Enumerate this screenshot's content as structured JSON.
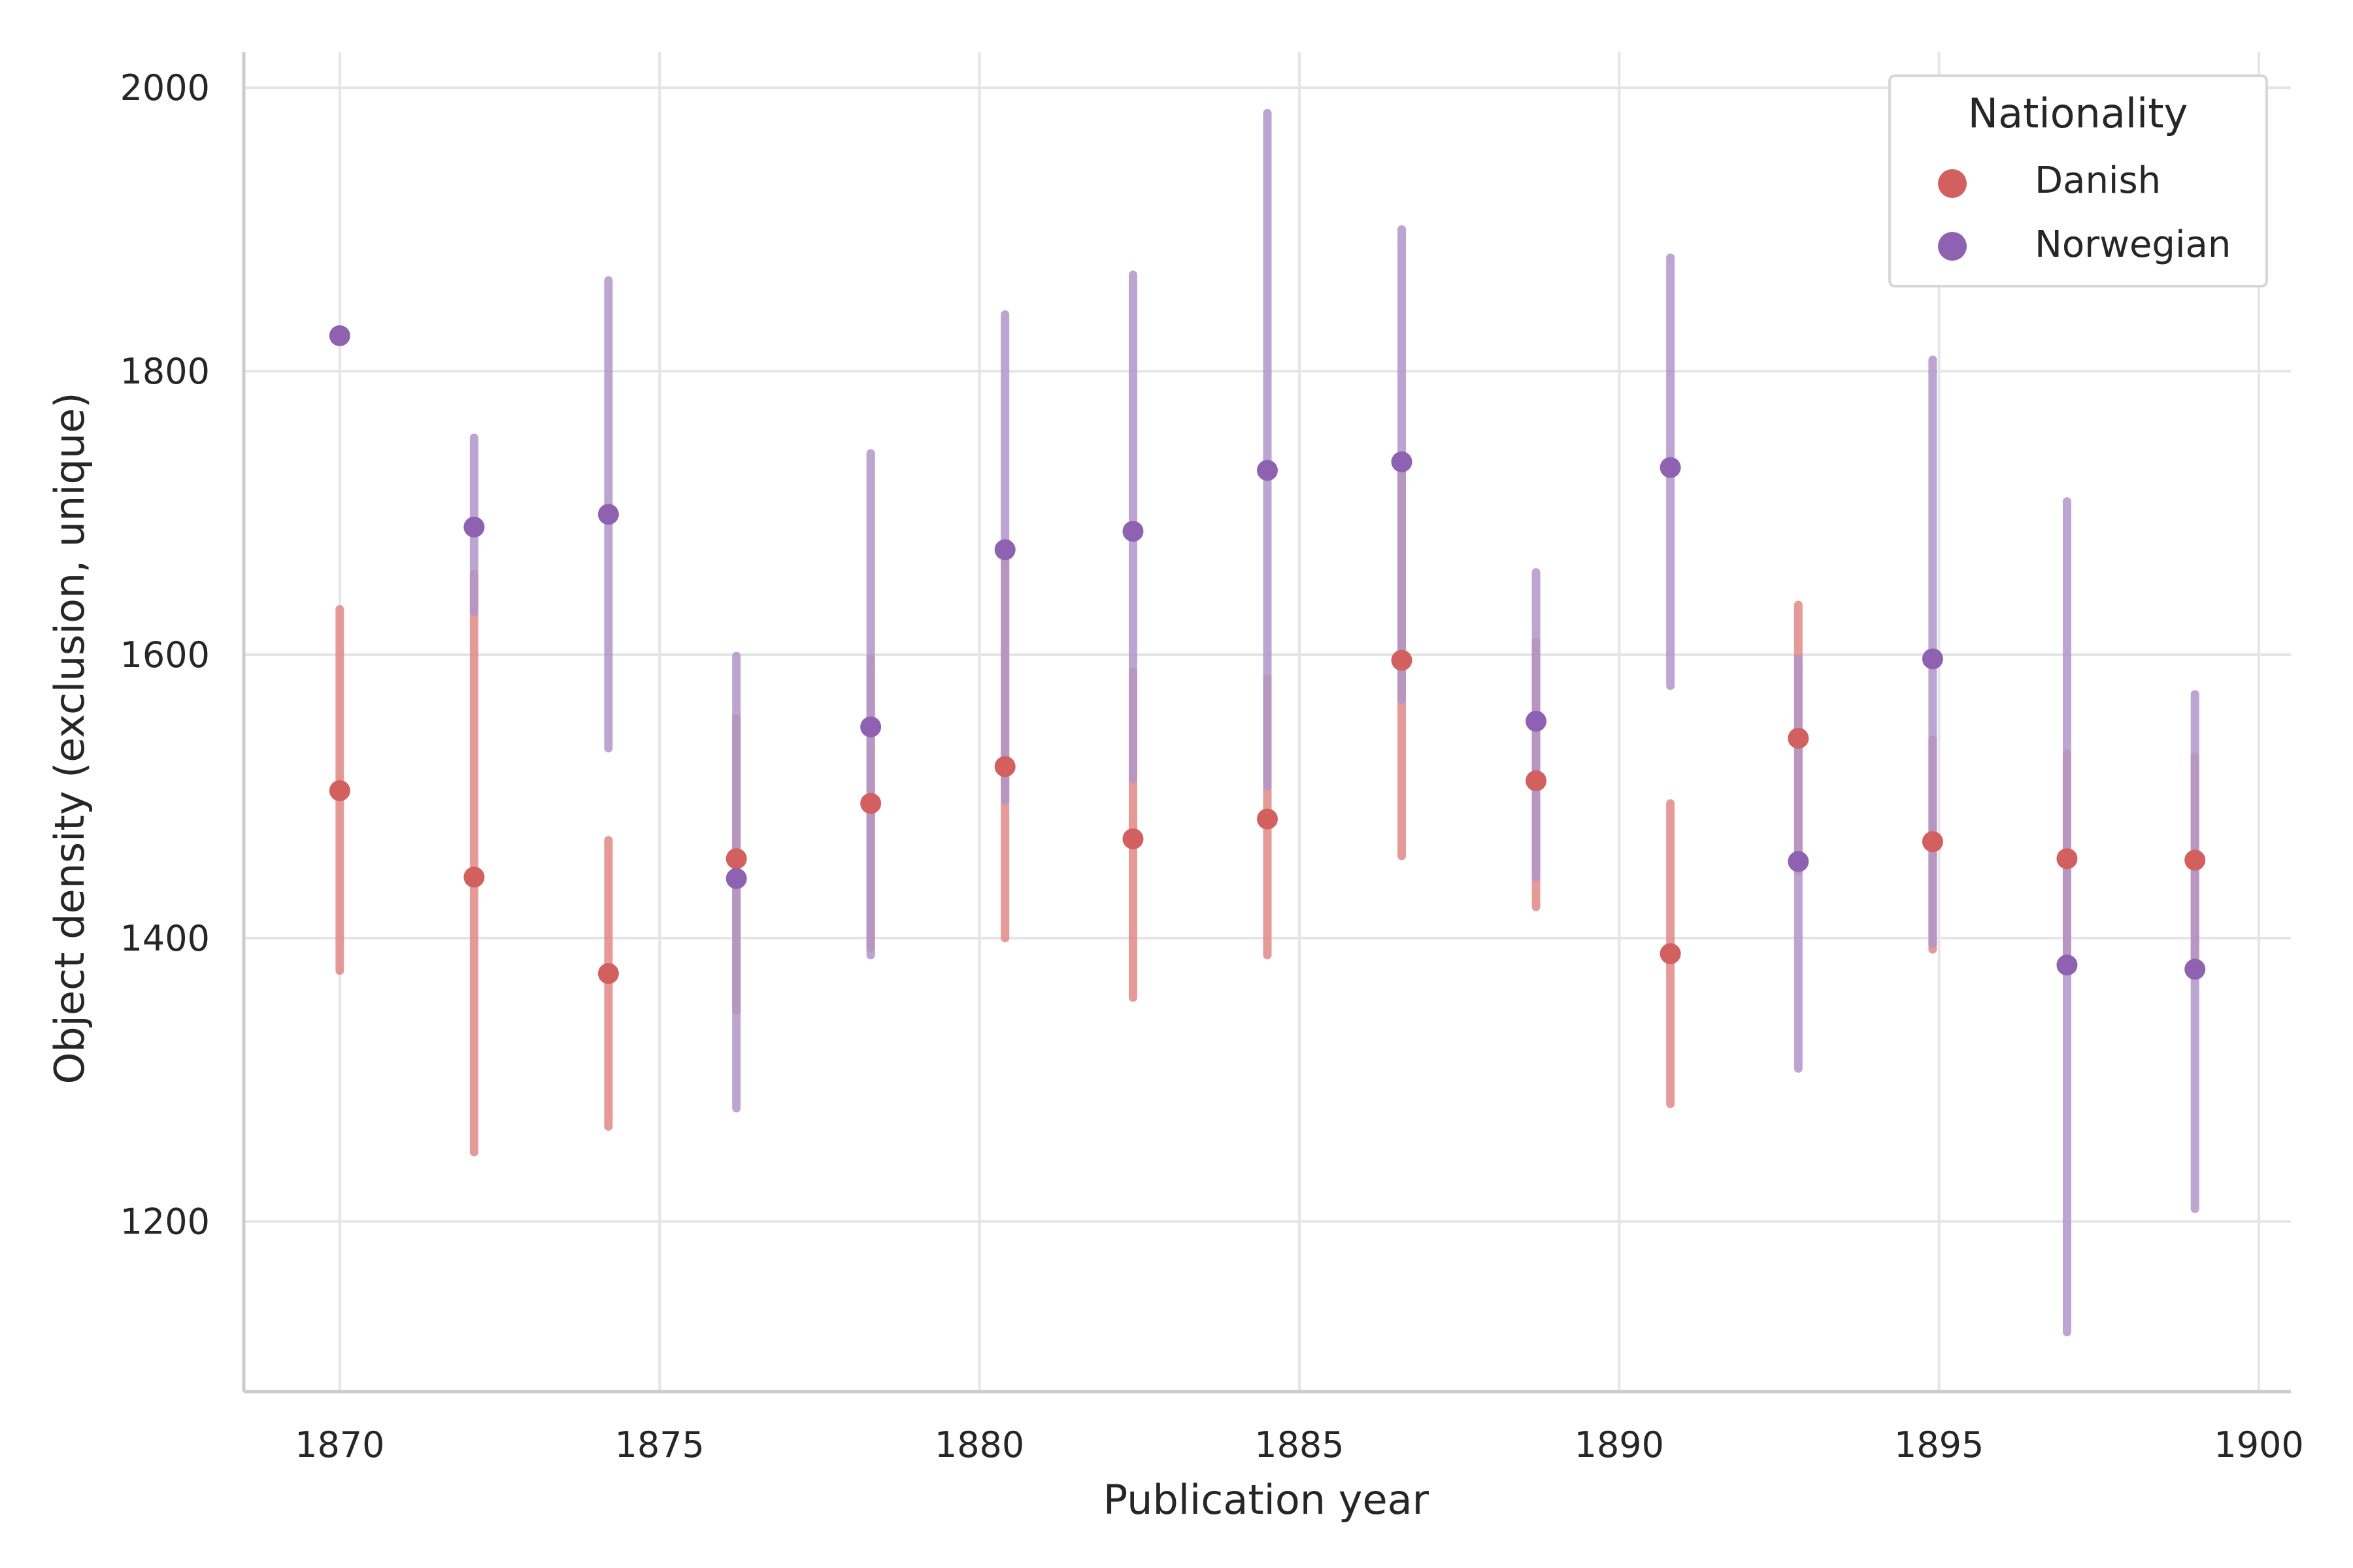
{
  "chart_data": {
    "type": "scatter",
    "xlabel": "Publication year",
    "ylabel": "Object density (exclusion, unique)",
    "xlim": [
      1868.5,
      1900.5
    ],
    "ylim": [
      1080,
      2025
    ],
    "xticks": [
      1870,
      1875,
      1880,
      1885,
      1890,
      1895,
      1900
    ],
    "yticks": [
      1200,
      1400,
      1600,
      1800,
      2000
    ],
    "grid": true,
    "legend": {
      "title": "Nationality",
      "placement": "top-right"
    },
    "series": [
      {
        "name": "Danish",
        "color": "#d1605e",
        "errorbar_color": "#e08886",
        "points": [
          {
            "x": 1870.0,
            "y": 1504,
            "low": 1377,
            "high": 1632
          },
          {
            "x": 1872.1,
            "y": 1443,
            "low": 1249,
            "high": 1657
          },
          {
            "x": 1874.2,
            "y": 1375,
            "low": 1267,
            "high": 1469
          },
          {
            "x": 1876.2,
            "y": 1456,
            "low": 1349,
            "high": 1555
          },
          {
            "x": 1878.3,
            "y": 1495,
            "low": 1393,
            "high": 1597
          },
          {
            "x": 1880.4,
            "y": 1521,
            "low": 1400,
            "high": 1675
          },
          {
            "x": 1882.4,
            "y": 1470,
            "low": 1358,
            "high": 1588
          },
          {
            "x": 1884.5,
            "y": 1484,
            "low": 1388,
            "high": 1583
          },
          {
            "x": 1886.6,
            "y": 1596,
            "low": 1458,
            "high": 1735
          },
          {
            "x": 1888.7,
            "y": 1511,
            "low": 1422,
            "high": 1609
          },
          {
            "x": 1890.8,
            "y": 1389,
            "low": 1283,
            "high": 1495
          },
          {
            "x": 1892.8,
            "y": 1541,
            "low": 1447,
            "high": 1635
          },
          {
            "x": 1894.9,
            "y": 1468,
            "low": 1392,
            "high": 1540
          },
          {
            "x": 1897.0,
            "y": 1456,
            "low": 1380,
            "high": 1530
          },
          {
            "x": 1899.0,
            "y": 1455,
            "low": 1382,
            "high": 1528
          }
        ]
      },
      {
        "name": "Norwegian",
        "color": "#8f62b1",
        "errorbar_color": "#b095c9",
        "points": [
          {
            "x": 1870.0,
            "y": 1825
          },
          {
            "x": 1872.1,
            "y": 1690,
            "low": 1630,
            "high": 1753
          },
          {
            "x": 1874.2,
            "y": 1699,
            "low": 1534,
            "high": 1864
          },
          {
            "x": 1876.2,
            "y": 1442,
            "low": 1280,
            "high": 1599
          },
          {
            "x": 1878.3,
            "y": 1549,
            "low": 1388,
            "high": 1742
          },
          {
            "x": 1880.4,
            "y": 1674,
            "low": 1497,
            "high": 1840
          },
          {
            "x": 1882.4,
            "y": 1687,
            "low": 1512,
            "high": 1868
          },
          {
            "x": 1884.5,
            "y": 1730,
            "low": 1507,
            "high": 1982
          },
          {
            "x": 1886.6,
            "y": 1736,
            "low": 1568,
            "high": 1900
          },
          {
            "x": 1888.7,
            "y": 1553,
            "low": 1443,
            "high": 1658
          },
          {
            "x": 1890.8,
            "y": 1732,
            "low": 1578,
            "high": 1880
          },
          {
            "x": 1892.8,
            "y": 1454,
            "low": 1308,
            "high": 1597
          },
          {
            "x": 1894.9,
            "y": 1597,
            "low": 1396,
            "high": 1808
          },
          {
            "x": 1897.0,
            "y": 1381,
            "low": 1122,
            "high": 1708
          },
          {
            "x": 1899.0,
            "y": 1378,
            "low": 1209,
            "high": 1572
          }
        ]
      }
    ]
  }
}
